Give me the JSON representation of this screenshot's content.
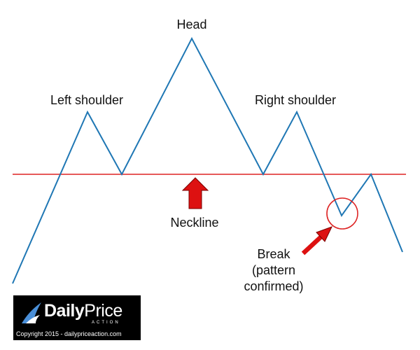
{
  "labels": {
    "head": "Head",
    "left_shoulder": "Left shoulder",
    "right_shoulder": "Right shoulder",
    "neckline": "Neckline",
    "break_line1": "Break",
    "break_line2": "(pattern",
    "break_line3": "confirmed)"
  },
  "logo": {
    "brand_part1": "Daily",
    "brand_part2": "Price",
    "brand_sub": "ACTION",
    "copyright": "Copyright 2015 - dailypriceaction.com"
  },
  "colors": {
    "price_line": "#1f77b4",
    "neckline": "#dd2222",
    "arrow": "#dd1111",
    "logo_bg": "#000000",
    "logo_icon": "#4a8fd8"
  }
}
